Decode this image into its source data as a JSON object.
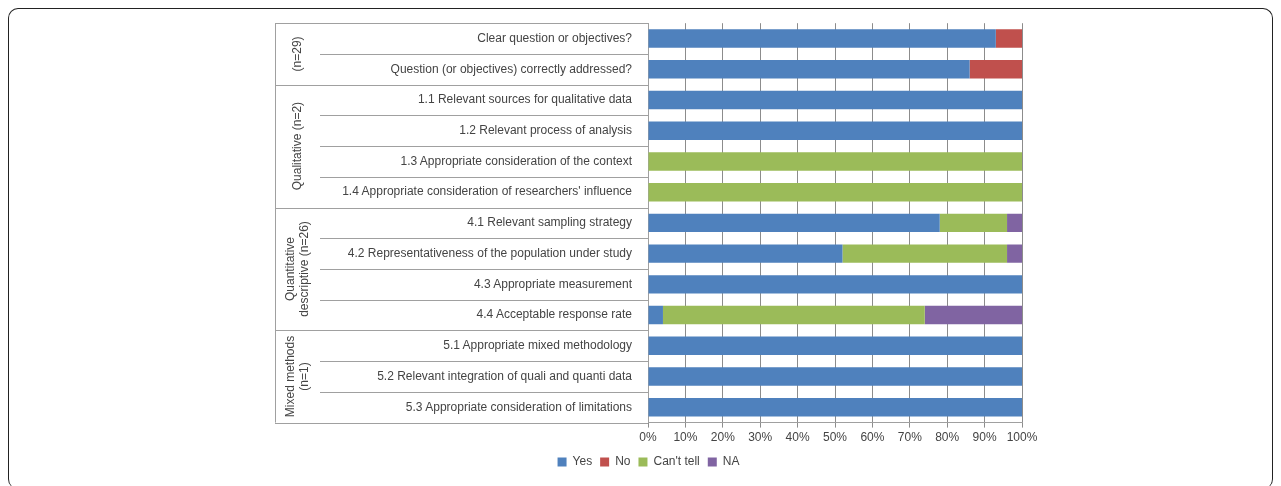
{
  "chart_data": {
    "type": "bar",
    "orientation": "horizontal",
    "stacked": true,
    "categories": [
      "Clear question or objectives?",
      "Question (or objectives) correctly addressed?",
      "1.1 Relevant sources for qualitative data",
      "1.2 Relevant process of analysis",
      "1.3 Appropriate consideration of the context",
      "1.4 Appropriate consideration of researchers' influence",
      "4.1 Relevant sampling strategy",
      "4.2 Representativeness of the population under study",
      "4.3 Appropriate measurement",
      "4.4 Acceptable response rate",
      "5.1 Appropriate mixed methodology",
      "5.2 Relevant integration of quali and quanti data",
      "5.3 Appropriate consideration of limitations"
    ],
    "series": [
      {
        "name": "Yes",
        "color": "#4f81bd",
        "values": [
          93,
          86,
          100,
          100,
          0,
          0,
          78,
          52,
          100,
          4,
          100,
          100,
          100
        ]
      },
      {
        "name": "No",
        "color": "#c0504d",
        "values": [
          7,
          14,
          0,
          0,
          0,
          0,
          0,
          0,
          0,
          0,
          0,
          0,
          0
        ]
      },
      {
        "name": "Can't tell",
        "color": "#9bbb59",
        "values": [
          0,
          0,
          0,
          0,
          100,
          100,
          18,
          44,
          0,
          70,
          0,
          0,
          0
        ]
      },
      {
        "name": "NA",
        "color": "#8064a2",
        "values": [
          0,
          0,
          0,
          0,
          0,
          0,
          4,
          4,
          0,
          26,
          0,
          0,
          0
        ]
      }
    ],
    "xlim": [
      0,
      100
    ],
    "xticks": [
      {
        "value": 0,
        "label": "0%"
      },
      {
        "value": 10,
        "label": "10%"
      },
      {
        "value": 20,
        "label": "20%"
      },
      {
        "value": 30,
        "label": "30%"
      },
      {
        "value": 40,
        "label": "40%"
      },
      {
        "value": 50,
        "label": "50%"
      },
      {
        "value": 60,
        "label": "60%"
      },
      {
        "value": 70,
        "label": "70%"
      },
      {
        "value": 80,
        "label": "80%"
      },
      {
        "value": 90,
        "label": "90%"
      },
      {
        "value": 100,
        "label": "100%"
      }
    ],
    "grid": "x",
    "legend": "bottom",
    "annotations": [
      "(n=29)",
      "Qualitative (n=2)",
      "Quantitative descriptive (n=26)",
      "Mixed methods (n=1)"
    ]
  }
}
